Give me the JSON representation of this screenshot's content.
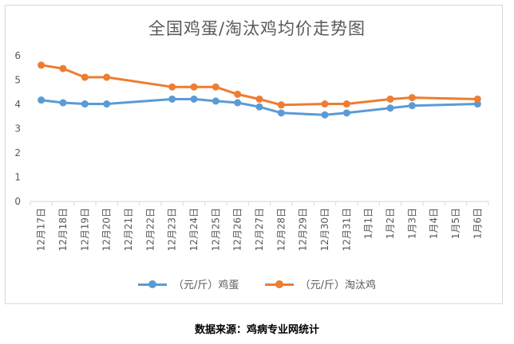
{
  "chart_data": {
    "type": "line",
    "title": "全国鸡蛋/淘汰鸡均价走势图",
    "categories": [
      "12月17日",
      "12月18日",
      "12月19日",
      "12月20日",
      "12月21日",
      "12月22日",
      "12月23日",
      "12月24日",
      "12月25日",
      "12月26日",
      "12月27日",
      "12月28日",
      "12月29日",
      "12月30日",
      "12月31日",
      "1月1日",
      "1月2日",
      "1月3日",
      "1月4日",
      "1月5日",
      "1月6日"
    ],
    "y_ticks": [
      0,
      1,
      2,
      3,
      4,
      5,
      6
    ],
    "ylim": [
      0,
      6.5
    ],
    "grid": false,
    "legend_position": "bottom",
    "series": [
      {
        "name": "（元/斤）鸡蛋",
        "color": "#5b9bd5",
        "values": [
          4.18,
          4.07,
          4.02,
          4.02,
          null,
          null,
          4.22,
          4.22,
          4.14,
          4.07,
          3.9,
          3.65,
          null,
          3.57,
          3.65,
          null,
          3.85,
          3.95,
          null,
          null,
          4.02
        ]
      },
      {
        "name": "（元/斤）淘汰鸡",
        "color": "#ed7d31",
        "values": [
          5.62,
          5.48,
          5.12,
          5.12,
          null,
          null,
          4.72,
          4.72,
          4.72,
          4.42,
          4.22,
          3.98,
          null,
          4.02,
          4.02,
          null,
          4.22,
          4.28,
          null,
          null,
          4.22
        ]
      }
    ]
  },
  "footer": {
    "source": "数据来源：鸡病专业网统计"
  }
}
